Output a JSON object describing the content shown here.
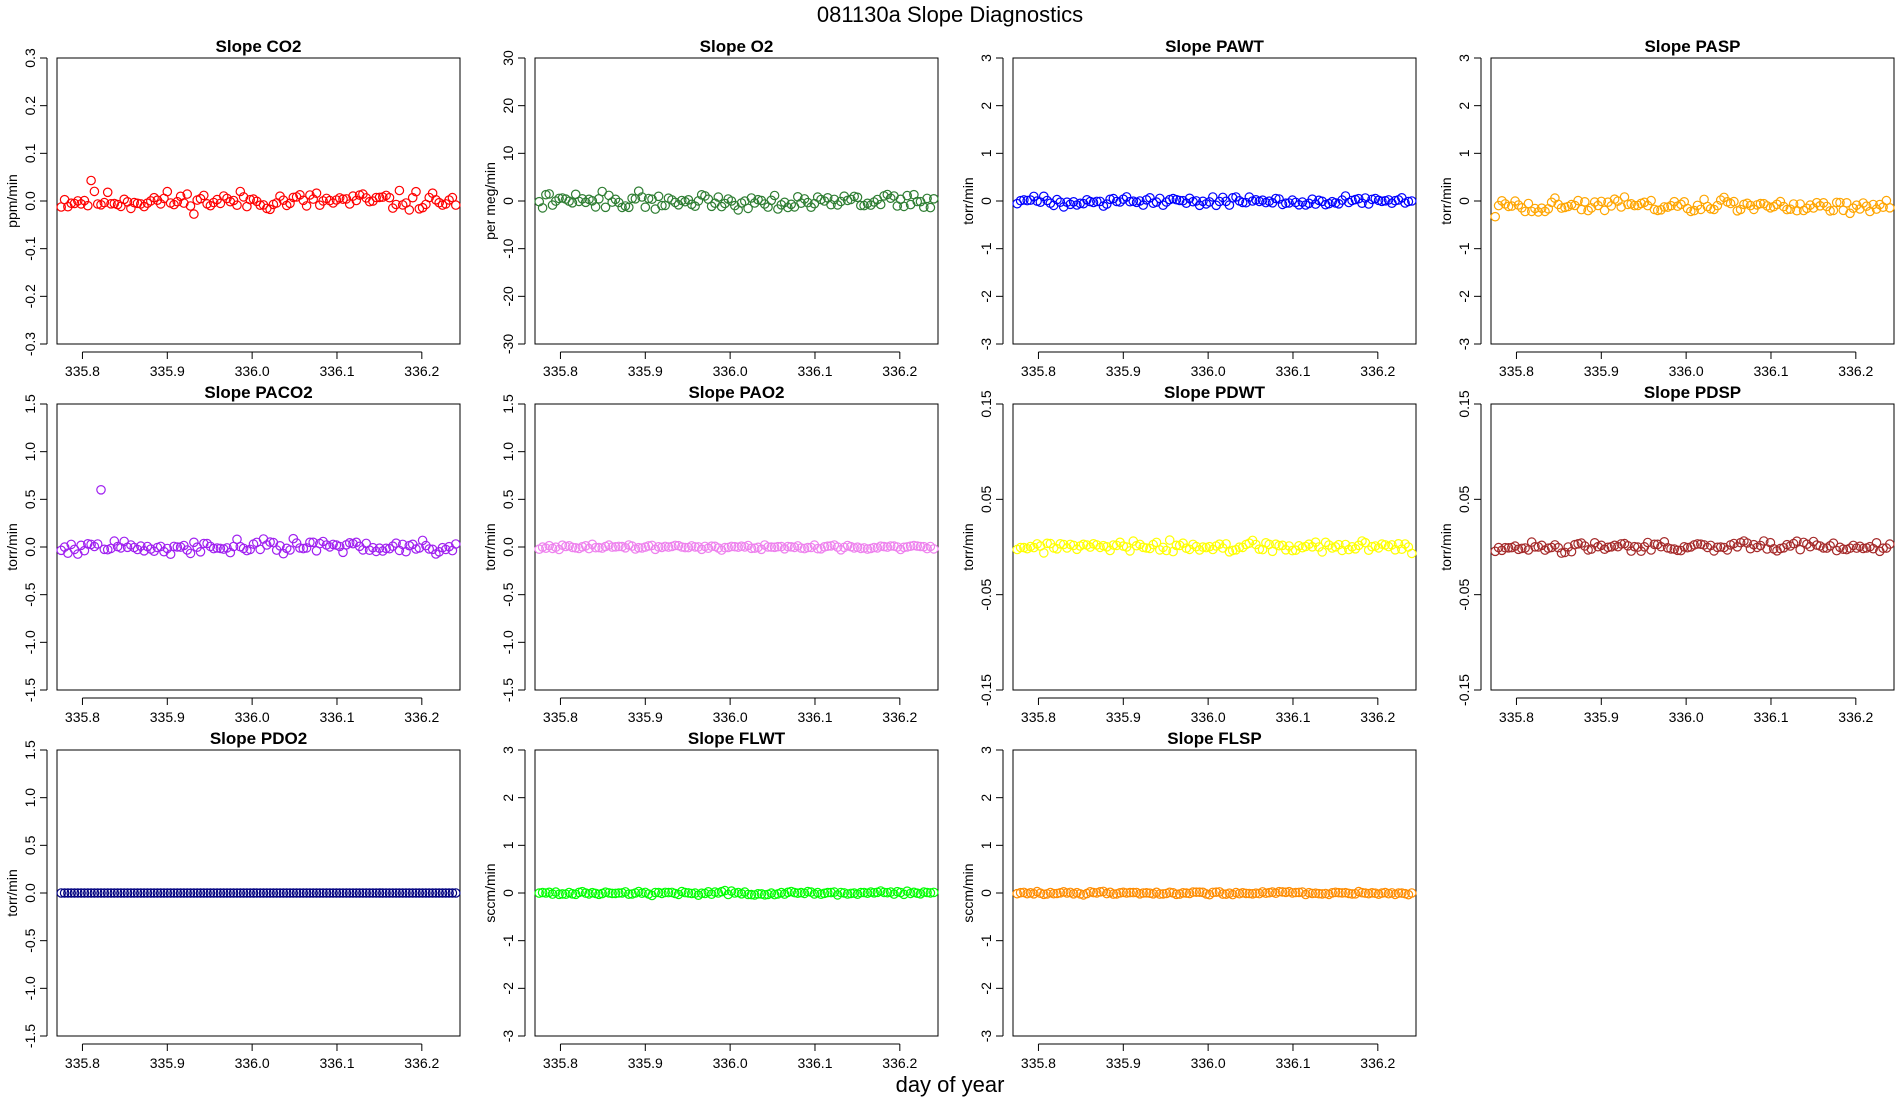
{
  "figure": {
    "title": "081130a   Slope Diagnostics",
    "xlabel": "day of year"
  },
  "chart_data": [
    {
      "type": "scatter",
      "title": "Slope CO2",
      "ylabel": "ppm/min",
      "color": "#ff0000",
      "ylim": [
        -0.3,
        0.3
      ],
      "yticks": [
        -0.3,
        -0.2,
        -0.1,
        0.0,
        0.1,
        0.2,
        0.3
      ],
      "xlim": [
        335.77,
        336.245
      ],
      "xticks": [
        335.8,
        335.9,
        336.0,
        336.1,
        336.2
      ],
      "n_points": 120,
      "y_baseline": 0.0,
      "y_noise": 0.01,
      "spikes": [
        {
          "x": 335.81,
          "y": 0.043
        }
      ],
      "seed": 11
    },
    {
      "type": "scatter",
      "title": "Slope O2",
      "ylabel": "per meg/min",
      "color": "#2e7d32",
      "ylim": [
        -30,
        30
      ],
      "yticks": [
        -30,
        -20,
        -10,
        0,
        10,
        20,
        30
      ],
      "xlim": [
        335.77,
        336.245
      ],
      "xticks": [
        335.8,
        335.9,
        336.0,
        336.1,
        336.2
      ],
      "n_points": 120,
      "y_baseline": 0.0,
      "y_noise": 0.8,
      "spikes": [
        {
          "x": 335.85,
          "y": 2.0
        }
      ],
      "seed": 22
    },
    {
      "type": "scatter",
      "title": "Slope PAWT",
      "ylabel": "torr/min",
      "color": "#0000ff",
      "ylim": [
        -3,
        3
      ],
      "yticks": [
        -3,
        -2,
        -1,
        0,
        1,
        2,
        3
      ],
      "xlim": [
        335.77,
        336.245
      ],
      "xticks": [
        335.8,
        335.9,
        336.0,
        336.1,
        336.2
      ],
      "n_points": 120,
      "y_baseline": 0.0,
      "y_noise": 0.05,
      "spikes": [],
      "seed": 33
    },
    {
      "type": "scatter",
      "title": "Slope PASP",
      "ylabel": "torr/min",
      "color": "#ffa500",
      "ylim": [
        -3,
        3
      ],
      "yticks": [
        -3,
        -2,
        -1,
        0,
        1,
        2,
        3
      ],
      "xlim": [
        335.77,
        336.245
      ],
      "xticks": [
        335.8,
        335.9,
        336.0,
        336.1,
        336.2
      ],
      "n_points": 120,
      "y_baseline": -0.1,
      "y_noise": 0.08,
      "spikes": [
        {
          "x": 335.775,
          "y": -0.33
        }
      ],
      "seed": 44
    },
    {
      "type": "scatter",
      "title": "Slope PACO2",
      "ylabel": "torr/min",
      "color": "#a020f0",
      "ylim": [
        -1.5,
        1.5
      ],
      "yticks": [
        -1.5,
        -1.0,
        -0.5,
        0.0,
        0.5,
        1.0,
        1.5
      ],
      "xlim": [
        335.77,
        336.245
      ],
      "xticks": [
        335.8,
        335.9,
        336.0,
        336.1,
        336.2
      ],
      "n_points": 120,
      "y_baseline": 0.0,
      "y_noise": 0.035,
      "spikes": [
        {
          "x": 335.82,
          "y": 0.6
        }
      ],
      "seed": 55
    },
    {
      "type": "scatter",
      "title": "Slope PAO2",
      "ylabel": "torr/min",
      "color": "#ee82ee",
      "ylim": [
        -1.5,
        1.5
      ],
      "yticks": [
        -1.5,
        -1.0,
        -0.5,
        0.0,
        0.5,
        1.0,
        1.5
      ],
      "xlim": [
        335.77,
        336.245
      ],
      "xticks": [
        335.8,
        335.9,
        336.0,
        336.1,
        336.2
      ],
      "n_points": 120,
      "y_baseline": 0.0,
      "y_noise": 0.012,
      "spikes": [],
      "seed": 66
    },
    {
      "type": "scatter",
      "title": "Slope PDWT",
      "ylabel": "torr/min",
      "color": "#ffff00",
      "ylim": [
        -0.15,
        0.15
      ],
      "yticks": [
        -0.15,
        -0.05,
        0.05,
        0.15
      ],
      "xlim": [
        335.77,
        336.245
      ],
      "xticks": [
        335.8,
        335.9,
        336.0,
        336.1,
        336.2
      ],
      "n_points": 120,
      "y_baseline": 0.0,
      "y_noise": 0.003,
      "spikes": [],
      "seed": 77
    },
    {
      "type": "scatter",
      "title": "Slope PDSP",
      "ylabel": "torr/min",
      "color": "#a52a2a",
      "ylim": [
        -0.15,
        0.15
      ],
      "yticks": [
        -0.15,
        -0.05,
        0.05,
        0.15
      ],
      "xlim": [
        335.77,
        336.245
      ],
      "xticks": [
        335.8,
        335.9,
        336.0,
        336.1,
        336.2
      ],
      "n_points": 120,
      "y_baseline": 0.0,
      "y_noise": 0.0025,
      "spikes": [],
      "seed": 88
    },
    {
      "type": "scatter",
      "title": "Slope PDO2",
      "ylabel": "torr/min",
      "color": "#000080",
      "ylim": [
        -1.5,
        1.5
      ],
      "yticks": [
        -1.5,
        -1.0,
        -0.5,
        0.0,
        0.5,
        1.0,
        1.5
      ],
      "xlim": [
        335.77,
        336.245
      ],
      "xticks": [
        335.8,
        335.9,
        336.0,
        336.1,
        336.2
      ],
      "n_points": 120,
      "y_baseline": 0.0,
      "y_noise": 0.0,
      "spikes": [],
      "seed": 99
    },
    {
      "type": "scatter",
      "title": "Slope FLWT",
      "ylabel": "sccm/min",
      "color": "#00ff00",
      "ylim": [
        -3,
        3
      ],
      "yticks": [
        -3,
        -2,
        -1,
        0,
        1,
        2,
        3
      ],
      "xlim": [
        335.77,
        336.245
      ],
      "xticks": [
        335.8,
        335.9,
        336.0,
        336.1,
        336.2
      ],
      "n_points": 120,
      "y_baseline": 0.0,
      "y_noise": 0.02,
      "spikes": [],
      "seed": 111
    },
    {
      "type": "scatter",
      "title": "Slope FLSP",
      "ylabel": "sccm/min",
      "color": "#ff8c00",
      "ylim": [
        -3,
        3
      ],
      "yticks": [
        -3,
        -2,
        -1,
        0,
        1,
        2,
        3
      ],
      "xlim": [
        335.77,
        336.245
      ],
      "xticks": [
        335.8,
        335.9,
        336.0,
        336.1,
        336.2
      ],
      "n_points": 120,
      "y_baseline": 0.0,
      "y_noise": 0.015,
      "spikes": [],
      "seed": 122
    }
  ]
}
